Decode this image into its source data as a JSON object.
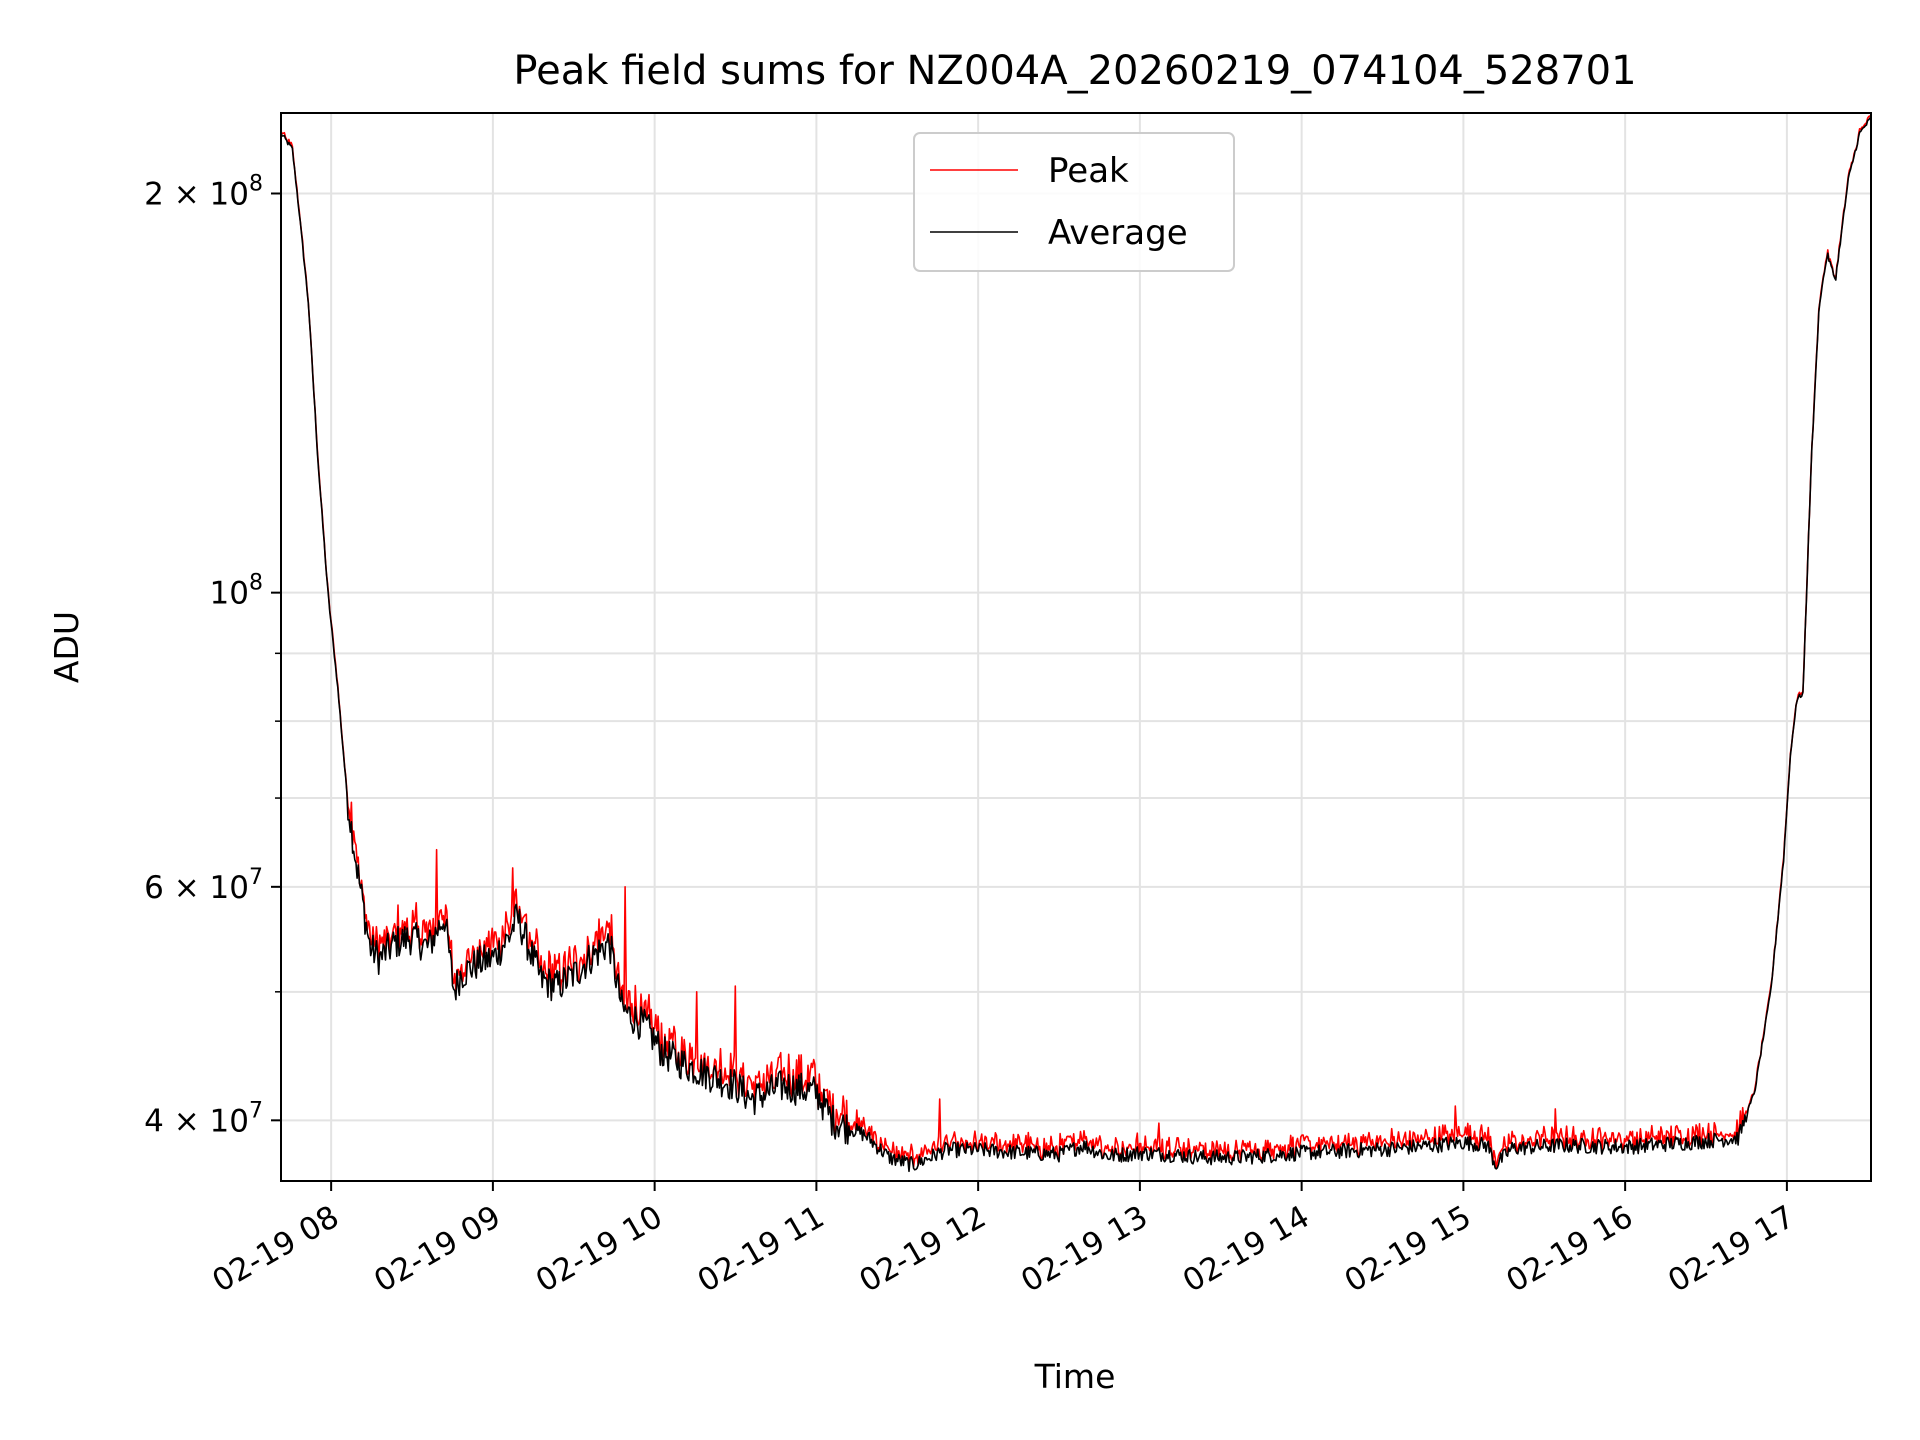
{
  "chart_data": {
    "type": "line",
    "title": "Peak field sums for NZ004A_20260219_074104_528701",
    "xlabel": "Time",
    "ylabel": "ADU",
    "y_scale": "log",
    "grid": true,
    "legend_position": "top-center",
    "xlim_hours": [
      7.69,
      17.52
    ],
    "ylim": [
      36000000,
      230000000
    ],
    "x_ticks": [
      {
        "value": 8,
        "label": "02-19 08"
      },
      {
        "value": 9,
        "label": "02-19 09"
      },
      {
        "value": 10,
        "label": "02-19 10"
      },
      {
        "value": 11,
        "label": "02-19 11"
      },
      {
        "value": 12,
        "label": "02-19 12"
      },
      {
        "value": 13,
        "label": "02-19 13"
      },
      {
        "value": 14,
        "label": "02-19 14"
      },
      {
        "value": 15,
        "label": "02-19 15"
      },
      {
        "value": 16,
        "label": "02-19 16"
      },
      {
        "value": 17,
        "label": "02-19 17"
      }
    ],
    "y_major_ticks": [
      {
        "value": 40000000,
        "mantissa": "4",
        "exponent": "7"
      },
      {
        "value": 60000000,
        "mantissa": "6",
        "exponent": "7"
      },
      {
        "value": 100000000,
        "mantissa": "",
        "exponent": "8"
      },
      {
        "value": 200000000,
        "mantissa": "2",
        "exponent": "8"
      }
    ],
    "y_minor_ticks": [
      50000000,
      70000000,
      80000000,
      90000000
    ],
    "tick_base": "10",
    "tick_times": "×",
    "series": [
      {
        "name": "Peak",
        "color": "#ff0000",
        "noise": 0.025,
        "spikes": [
          {
            "x": 8.65,
            "y": 64000000
          },
          {
            "x": 9.12,
            "y": 62000000
          },
          {
            "x": 9.82,
            "y": 60000000
          },
          {
            "x": 10.26,
            "y": 50000000
          },
          {
            "x": 10.5,
            "y": 50500000
          },
          {
            "x": 11.76,
            "y": 41500000
          },
          {
            "x": 13.12,
            "y": 39800000
          },
          {
            "x": 14.95,
            "y": 41000000
          },
          {
            "x": 15.57,
            "y": 40800000
          }
        ]
      },
      {
        "name": "Average",
        "color": "#000000",
        "noise": 0.012,
        "spikes": []
      }
    ],
    "base_curve": {
      "x": [
        7.69,
        7.76,
        7.8,
        7.86,
        7.92,
        7.98,
        8.04,
        8.1,
        8.16,
        8.24,
        8.3,
        8.4,
        8.5,
        8.6,
        8.7,
        8.76,
        8.8,
        8.9,
        9.0,
        9.1,
        9.15,
        9.3,
        9.4,
        9.5,
        9.6,
        9.72,
        9.8,
        9.95,
        10.05,
        10.2,
        10.3,
        10.4,
        10.5,
        10.6,
        10.8,
        11.0,
        11.1,
        11.3,
        11.45,
        11.6,
        11.7,
        11.8,
        12.0,
        12.3,
        12.5,
        12.65,
        12.8,
        13.0,
        13.2,
        13.4,
        13.6,
        14.0,
        14.2,
        14.6,
        15.0,
        15.15,
        15.2,
        15.3,
        15.6,
        16.0,
        16.4,
        16.7,
        16.8,
        16.9,
        16.98,
        17.02,
        17.06,
        17.1,
        17.15,
        17.2,
        17.25,
        17.3,
        17.38,
        17.45,
        17.52
      ],
      "y": [
        222000000,
        216000000,
        195000000,
        165000000,
        125000000,
        100000000,
        85000000,
        70000000,
        62000000,
        54000000,
        53000000,
        54500000,
        55000000,
        54000000,
        57000000,
        50000000,
        51500000,
        52500000,
        53000000,
        55000000,
        57000000,
        51000000,
        50500000,
        51500000,
        53000000,
        54500000,
        48500000,
        47000000,
        45000000,
        44000000,
        43500000,
        43000000,
        42500000,
        41500000,
        42500000,
        42000000,
        40000000,
        39000000,
        37500000,
        37000000,
        37500000,
        38000000,
        38000000,
        37800000,
        37700000,
        38300000,
        37600000,
        37800000,
        37700000,
        37500000,
        37500000,
        37800000,
        37900000,
        38100000,
        38500000,
        38300000,
        37000000,
        38100000,
        38300000,
        38200000,
        38500000,
        38800000,
        42000000,
        50000000,
        63000000,
        75000000,
        83000000,
        84000000,
        125000000,
        165000000,
        180000000,
        172000000,
        205000000,
        222000000,
        228000000
      ]
    }
  }
}
